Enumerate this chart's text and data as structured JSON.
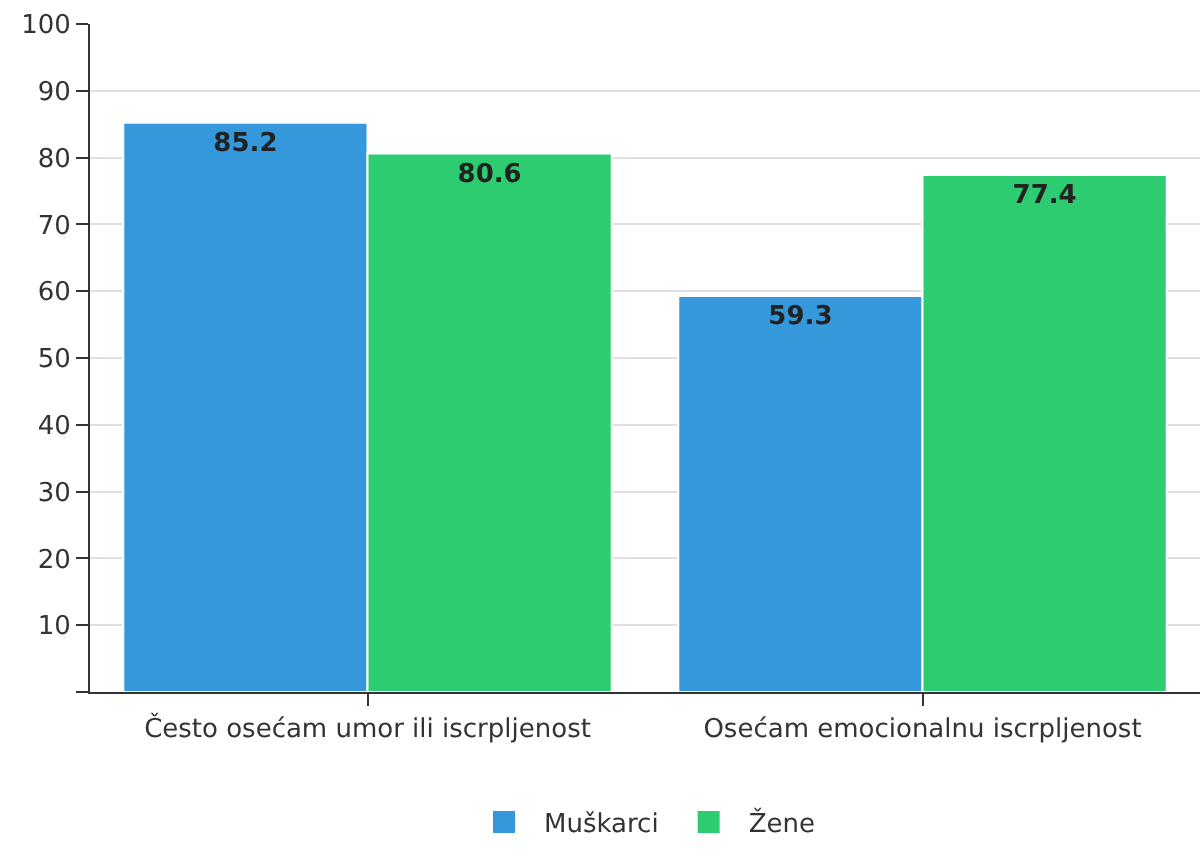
{
  "chart_data": {
    "type": "bar",
    "categories": [
      "Često osećam umor ili iscrpljenost",
      "Osećam emocionalnu iscrpljenost"
    ],
    "series": [
      {
        "name": "Muškarci",
        "color": "#3498db",
        "values": [
          85.2,
          59.3
        ]
      },
      {
        "name": "Žene",
        "color": "#2ecc71",
        "values": [
          80.6,
          77.4
        ]
      }
    ],
    "ylim": [
      0,
      100
    ],
    "yticks": [
      {
        "value": 0,
        "label": null
      },
      10,
      20,
      30,
      40,
      50,
      60,
      70,
      80,
      90,
      100
    ],
    "grid": "y",
    "legend": "bottom",
    "data_labels": true
  }
}
